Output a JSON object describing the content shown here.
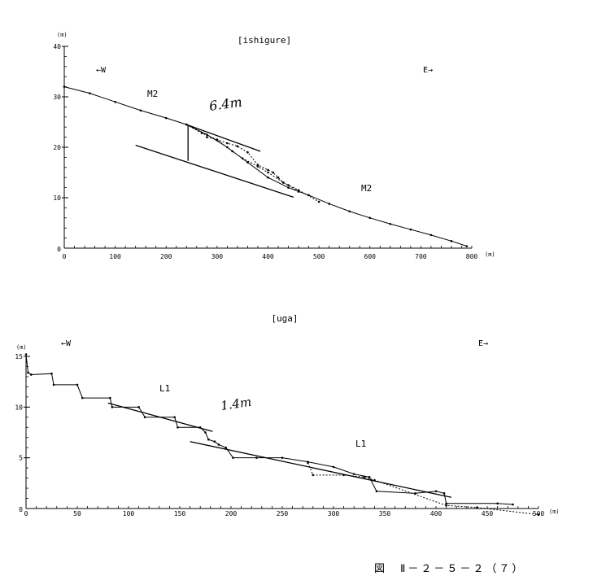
{
  "caption": "図　Ⅱ－２－５－２（７）",
  "chart_data": [
    {
      "type": "line",
      "title": "[ishigure]",
      "unit_label_y": "(m)",
      "unit_label_x": "(m)",
      "direction_left": "←W",
      "direction_right": "E→",
      "xlim": [
        0,
        800
      ],
      "ylim": [
        0,
        40
      ],
      "xticks": [
        0,
        100,
        200,
        300,
        400,
        500,
        600,
        700,
        800
      ],
      "yticks": [
        10,
        20,
        30,
        40
      ],
      "annotations": {
        "left_unit": "M2",
        "right_unit": "M2",
        "offset": "6.4m"
      },
      "series": [
        {
          "style": "solid-dots",
          "points": [
            [
              0,
              32
            ],
            [
              50,
              30.7
            ],
            [
              100,
              29
            ],
            [
              150,
              27.3
            ],
            [
              200,
              25.8
            ],
            [
              240,
              24.5
            ],
            [
              280,
              22.5
            ],
            [
              320,
              20
            ],
            [
              360,
              17
            ],
            [
              400,
              14
            ],
            [
              440,
              12
            ],
            [
              480,
              10.5
            ],
            [
              520,
              8.8
            ],
            [
              560,
              7.3
            ],
            [
              600,
              6
            ],
            [
              640,
              4.8
            ],
            [
              680,
              3.7
            ],
            [
              720,
              2.6
            ],
            [
              760,
              1.4
            ],
            [
              790,
              0.4
            ]
          ]
        },
        {
          "style": "dotted",
          "points": [
            [
              240,
              24.5
            ],
            [
              270,
              22.8
            ],
            [
              300,
              21.5
            ],
            [
              330,
              19.2
            ],
            [
              350,
              17.8
            ],
            [
              380,
              16.2
            ],
            [
              400,
              15
            ],
            [
              430,
              13
            ],
            [
              460,
              11.5
            ],
            [
              500,
              9.2
            ]
          ]
        },
        {
          "style": "stepped-dotted",
          "points": [
            [
              280,
              22
            ],
            [
              300,
              21.5
            ],
            [
              320,
              20.8
            ],
            [
              340,
              20.2
            ],
            [
              360,
              19
            ],
            [
              380,
              16.5
            ],
            [
              400,
              15.5
            ],
            [
              410,
              15
            ],
            [
              420,
              14
            ],
            [
              430,
              13
            ],
            [
              440,
              12.5
            ],
            [
              460,
              11.2
            ]
          ]
        }
      ],
      "lines": [
        {
          "points": [
            [
              240,
              24.5
            ],
            [
              385,
              19.2
            ]
          ]
        },
        {
          "points": [
            [
              140,
              20.4
            ],
            [
              450,
              10.1
            ]
          ]
        },
        {
          "points": [
            [
              243,
              24.4
            ],
            [
              243,
              17.3
            ]
          ]
        }
      ]
    },
    {
      "type": "line",
      "title": "[uga]",
      "unit_label_y": "(m)",
      "unit_label_x": "(m)",
      "direction_left": "←W",
      "direction_right": "E→",
      "xlim": [
        0,
        500
      ],
      "ylim": [
        0,
        15
      ],
      "xticks": [
        0,
        50,
        100,
        150,
        200,
        250,
        300,
        350,
        400,
        450,
        500
      ],
      "yticks": [
        5,
        10,
        15
      ],
      "annotations": {
        "left_unit": "L1",
        "right_unit": "L1",
        "offset": "1.4m"
      },
      "series": [
        {
          "style": "solid-dots",
          "points": [
            [
              0,
              15.2
            ],
            [
              2,
              13.4
            ],
            [
              5,
              13.2
            ],
            [
              25,
              13.3
            ],
            [
              27,
              12.2
            ],
            [
              50,
              12.2
            ],
            [
              55,
              10.9
            ],
            [
              82,
              10.9
            ],
            [
              84,
              10
            ],
            [
              110,
              10
            ],
            [
              116,
              9
            ],
            [
              145,
              9
            ],
            [
              148,
              8
            ],
            [
              170,
              8
            ],
            [
              175,
              7.5
            ],
            [
              178,
              6.8
            ],
            [
              184,
              6.6
            ],
            [
              188,
              6.3
            ],
            [
              195,
              6
            ],
            [
              202,
              5
            ],
            [
              225,
              5
            ],
            [
              250,
              5
            ],
            [
              275,
              4.6
            ],
            [
              300,
              4.1
            ],
            [
              320,
              3.4
            ],
            [
              335,
              3.1
            ],
            [
              342,
              1.7
            ],
            [
              380,
              1.5
            ],
            [
              400,
              1.7
            ],
            [
              408,
              1.5
            ],
            [
              410,
              0.5
            ],
            [
              460,
              0.5
            ],
            [
              475,
              0.4
            ]
          ]
        },
        {
          "style": "dotted",
          "points": [
            [
              275,
              4.5
            ],
            [
              280,
              3.3
            ],
            [
              310,
              3.3
            ],
            [
              330,
              3.1
            ],
            [
              340,
              2.8
            ],
            [
              410,
              0.3
            ],
            [
              440,
              0.1
            ],
            [
              500,
              -0.6
            ]
          ]
        }
      ],
      "lines": [
        {
          "points": [
            [
              80,
              10.4
            ],
            [
              182,
              7.6
            ]
          ]
        },
        {
          "points": [
            [
              160,
              6.6
            ],
            [
              415,
              1.1
            ]
          ]
        }
      ]
    }
  ]
}
